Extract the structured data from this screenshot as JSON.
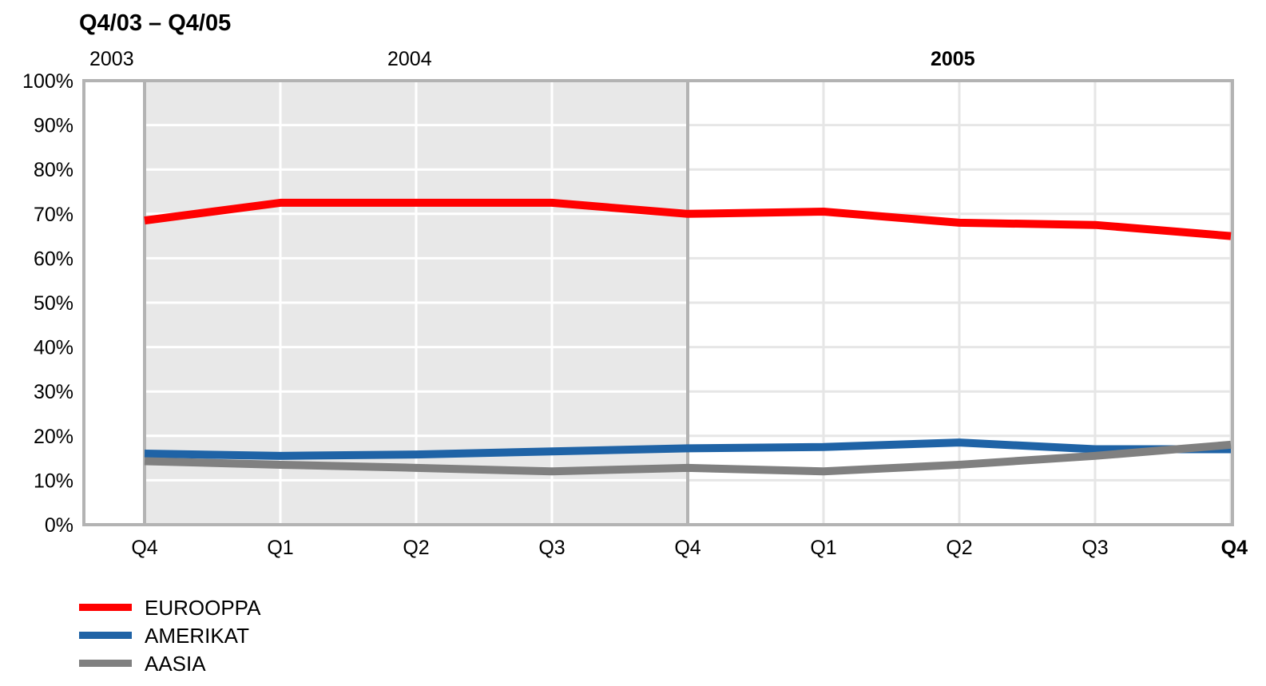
{
  "chart_data": {
    "type": "line",
    "title": "Q4/03 – Q4/05",
    "years": [
      {
        "label": "2003",
        "bold": false
      },
      {
        "label": "2004",
        "bold": false
      },
      {
        "label": "2005",
        "bold": true
      }
    ],
    "categories": [
      "Q4",
      "Q1",
      "Q2",
      "Q3",
      "Q4",
      "Q1",
      "Q2",
      "Q3",
      "Q4"
    ],
    "bold_categories": [
      8
    ],
    "y_ticks": [
      "0%",
      "10%",
      "20%",
      "30%",
      "40%",
      "50%",
      "60%",
      "70%",
      "80%",
      "90%",
      "100%"
    ],
    "ylim": [
      0,
      100
    ],
    "grid": true,
    "shaded_range": [
      0,
      4
    ],
    "legend_position": "bottom-left",
    "series": [
      {
        "name": "EUROOPPA",
        "color": "#ff0000",
        "values": [
          68.5,
          72.5,
          72.5,
          72.5,
          70,
          70.5,
          68,
          67.5,
          65
        ]
      },
      {
        "name": "AMERIKAT",
        "color": "#1f63a6",
        "values": [
          16,
          15.5,
          15.8,
          16.5,
          17.2,
          17.5,
          18.5,
          17,
          17
        ]
      },
      {
        "name": "AASIA",
        "color": "#808080",
        "values": [
          14.3,
          13.5,
          12.8,
          12,
          12.8,
          12,
          13.5,
          15.5,
          18
        ]
      }
    ]
  }
}
